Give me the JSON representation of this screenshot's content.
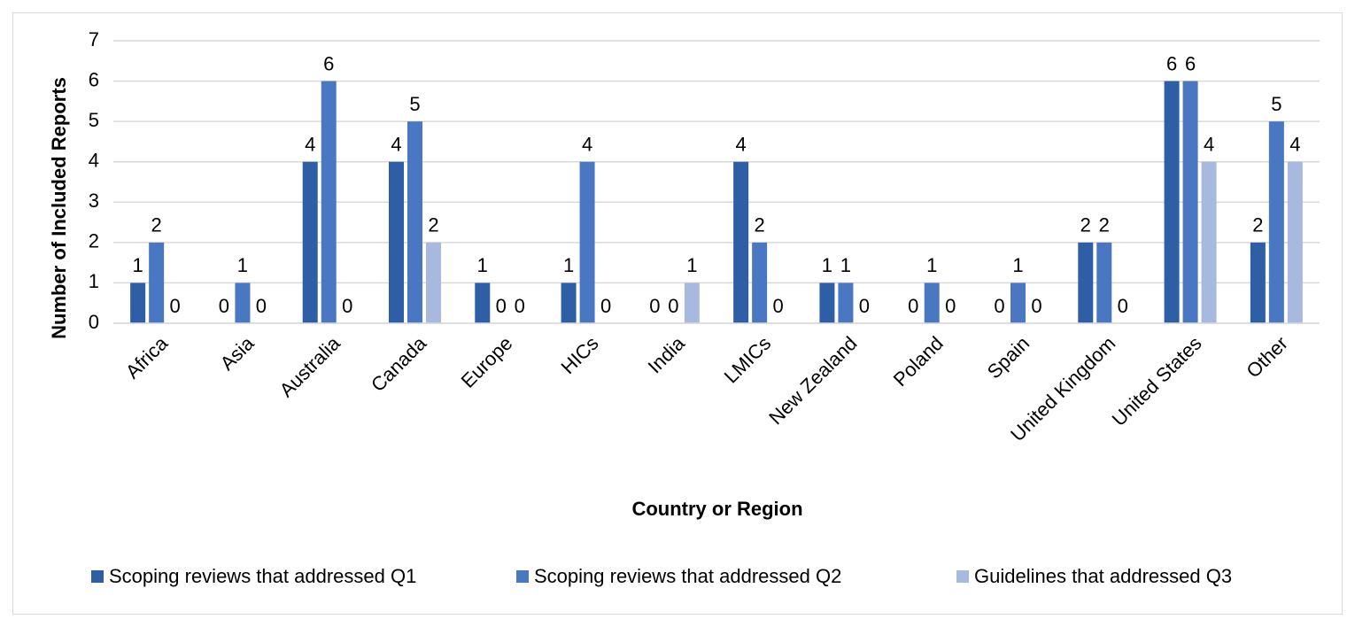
{
  "chart_data": {
    "type": "bar",
    "x_label": "Country or Region",
    "y_label": "Number of Included Reports",
    "categories": [
      "Africa",
      "Asia",
      "Australia",
      "Canada",
      "Europe",
      "HICs",
      "India",
      "LMICs",
      "New Zealand",
      "Poland",
      "Spain",
      "United Kingdom",
      "United States",
      "Other"
    ],
    "series": [
      {
        "name": "Scoping reviews that addressed Q1",
        "color": "#2e5ea6",
        "values": [
          1,
          0,
          4,
          4,
          1,
          1,
          0,
          4,
          1,
          0,
          0,
          2,
          6,
          2
        ]
      },
      {
        "name": "Scoping reviews that addressed Q2",
        "color": "#4a77c1",
        "values": [
          2,
          1,
          6,
          5,
          0,
          4,
          0,
          2,
          1,
          1,
          1,
          2,
          6,
          5
        ]
      },
      {
        "name": "Guidelines that addressed Q3",
        "color": "#a8b9e0",
        "values": [
          0,
          0,
          0,
          2,
          0,
          0,
          1,
          0,
          0,
          0,
          0,
          0,
          4,
          4
        ]
      }
    ],
    "ylim": [
      0,
      7
    ],
    "yticks": [
      0,
      1,
      2,
      3,
      4,
      5,
      6,
      7
    ],
    "grid": true,
    "legend": "bottom"
  }
}
